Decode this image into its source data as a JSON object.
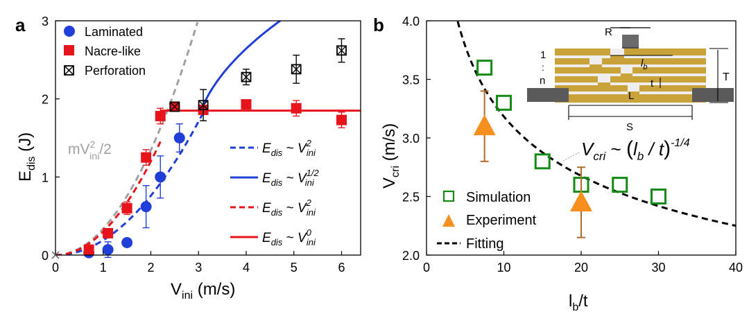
{
  "colors": {
    "blue": "#1f3fd8",
    "red": "#e8141b",
    "gray": "#a0a0a0",
    "green": "#138a13",
    "orange": "#f5901e",
    "errorbar_orange": "#b06a2a",
    "gold": "#c9a23a",
    "steel": "#5a5a5a"
  },
  "chart_data": [
    {
      "type": "scatter",
      "panel_label": "a",
      "xlabel_main": "V",
      "xlabel_sub": "ini",
      "xlabel_unit": " (m/s)",
      "ylabel_main": "E",
      "ylabel_sub": "dis",
      "ylabel_unit": " (J)",
      "xlim": [
        0,
        6.4
      ],
      "ylim": [
        0,
        3
      ],
      "xticks": [
        0,
        1,
        2,
        3,
        4,
        5,
        6
      ],
      "yticks": [
        0,
        1,
        2,
        3
      ],
      "series": [
        {
          "name": "Laminated",
          "marker": "circle",
          "color": "#1f3fd8",
          "points": [
            {
              "x": 0.7,
              "y": 0.03,
              "err": 0.0
            },
            {
              "x": 1.1,
              "y": 0.07,
              "err": 0.1
            },
            {
              "x": 1.5,
              "y": 0.16,
              "err": 0.0
            },
            {
              "x": 1.9,
              "y": 0.62,
              "err": 0.27
            },
            {
              "x": 2.2,
              "y": 1.0,
              "err": 0.27
            },
            {
              "x": 2.6,
              "y": 1.5,
              "err": 0.18
            }
          ]
        },
        {
          "name": "Nacre-like",
          "marker": "square",
          "color": "#e8141b",
          "points": [
            {
              "x": 0.7,
              "y": 0.07,
              "err": 0.0
            },
            {
              "x": 1.1,
              "y": 0.28,
              "err": 0.0
            },
            {
              "x": 1.5,
              "y": 0.6,
              "err": 0.08
            },
            {
              "x": 1.9,
              "y": 1.25,
              "err": 0.1
            },
            {
              "x": 2.2,
              "y": 1.78,
              "err": 0.1
            },
            {
              "x": 2.5,
              "y": 1.9,
              "err": 0.0
            },
            {
              "x": 3.1,
              "y": 1.86,
              "err": 0.05
            },
            {
              "x": 4.0,
              "y": 1.93,
              "err": 0.05
            },
            {
              "x": 5.05,
              "y": 1.88,
              "err": 0.1
            },
            {
              "x": 6.0,
              "y": 1.73,
              "err": 0.1
            }
          ]
        },
        {
          "name": "Perforation",
          "marker": "crossed-square",
          "color": "#000000",
          "points": [
            {
              "x": 2.5,
              "y": 1.9,
              "err": 0.0
            },
            {
              "x": 3.1,
              "y": 1.92,
              "err": 0.2
            },
            {
              "x": 4.0,
              "y": 2.28,
              "err": 0.1
            },
            {
              "x": 5.05,
              "y": 2.38,
              "err": 0.18
            },
            {
              "x": 6.0,
              "y": 2.62,
              "err": 0.15
            }
          ]
        }
      ],
      "curves": [
        {
          "id": "mv2",
          "style": "dashed",
          "color": "#a0a0a0",
          "kind": "power",
          "k": 0.336,
          "p": 2,
          "x0": 0.0,
          "x1": 2.98
        },
        {
          "id": "blue-v2",
          "style": "dashed",
          "color": "#1f3fd8",
          "kind": "power",
          "k": 0.19,
          "p": 2,
          "x0": 0.0,
          "x1": 3.1
        },
        {
          "id": "blue-sqrt",
          "style": "solid",
          "color": "#1f3fd8",
          "kind": "sqrt-offset",
          "k": 1.2,
          "off": 2.9,
          "base": 1.85,
          "x0": 3.05,
          "x1": 6.4
        },
        {
          "id": "red-v2",
          "style": "dashed",
          "color": "#e8141b",
          "kind": "power",
          "k": 0.3,
          "p": 2,
          "x0": 0.0,
          "x1": 2.2
        },
        {
          "id": "red-flat",
          "style": "solid",
          "color": "#e8141b",
          "kind": "const",
          "value": 1.85,
          "x0": 2.2,
          "x1": 6.4
        }
      ],
      "legend": [
        "Laminated",
        "Nacre-like",
        "Perforation"
      ],
      "annotation_mv": {
        "base": "mV",
        "sup": "2",
        "sub": "ini",
        "tail": "/2"
      },
      "fit_legend": [
        {
          "color": "#1f3fd8",
          "style": "dashed",
          "lhs": "E",
          "lhs_sub": "dis",
          "rel": " ~ ",
          "rhs": "V",
          "rhs_sub": "ini",
          "rhs_sup": "2"
        },
        {
          "color": "#1f3fd8",
          "style": "solid",
          "lhs": "E",
          "lhs_sub": "dis",
          "rel": " ~ ",
          "rhs": "V",
          "rhs_sub": "ini",
          "rhs_sup": "1/2"
        },
        {
          "color": "#e8141b",
          "style": "dashed",
          "lhs": "E",
          "lhs_sub": "dis",
          "rel": " ~ ",
          "rhs": "V",
          "rhs_sub": "ini",
          "rhs_sup": "2"
        },
        {
          "color": "#e8141b",
          "style": "solid",
          "lhs": "E",
          "lhs_sub": "dis",
          "rel": " ~ ",
          "rhs": "V",
          "rhs_sub": "ini",
          "rhs_sup": "0"
        }
      ]
    },
    {
      "type": "scatter",
      "panel_label": "b",
      "xlabel_main": "l",
      "xlabel_sub": "b",
      "xlabel_unit": "/t",
      "ylabel_main": "V",
      "ylabel_sub": "cri",
      "ylabel_unit": " (m/s)",
      "xlim": [
        0,
        40
      ],
      "ylim": [
        2.0,
        4.0
      ],
      "xticks": [
        0,
        10,
        20,
        30,
        40
      ],
      "yticks": [
        2.0,
        2.5,
        3.0,
        3.5,
        4.0
      ],
      "ytick_labels": [
        "2.0",
        "2.5",
        "3.0",
        "3.5",
        "4.0"
      ],
      "series": [
        {
          "name": "Simulation",
          "marker": "open-square",
          "color": "#138a13",
          "points": [
            {
              "x": 7.5,
              "y": 3.6
            },
            {
              "x": 10.0,
              "y": 3.3
            },
            {
              "x": 15.0,
              "y": 2.8
            },
            {
              "x": 20.0,
              "y": 2.6
            },
            {
              "x": 25.0,
              "y": 2.6
            },
            {
              "x": 30.0,
              "y": 2.5
            }
          ]
        },
        {
          "name": "Experiment",
          "marker": "triangle",
          "color": "#f5901e",
          "points": [
            {
              "x": 7.5,
              "y": 3.1,
              "lo": 2.8,
              "hi": 3.4
            },
            {
              "x": 20.0,
              "y": 2.45,
              "lo": 2.15,
              "hi": 2.75
            }
          ]
        }
      ],
      "fit": {
        "name": "Fitting",
        "kind": "power",
        "k": 5.66,
        "p": -0.25,
        "x0": 3.4,
        "x1": 40
      },
      "legend": [
        "Simulation",
        "Experiment",
        "Fitting"
      ],
      "equation": {
        "lhs": "V",
        "lhs_sub": "cri",
        "rel": " ~ ",
        "open": "(",
        "mid_main": "l",
        "mid_sub": "b",
        "mid_rest": " / t",
        "close": ")",
        "sup": "-1/4"
      },
      "inset_labels": {
        "R": "R",
        "lb_main": "l",
        "lb_sub": "b",
        "t": "t",
        "T": "T",
        "L": "L",
        "S": "S",
        "one": "1",
        "dots": ":",
        "n": "n"
      }
    }
  ]
}
